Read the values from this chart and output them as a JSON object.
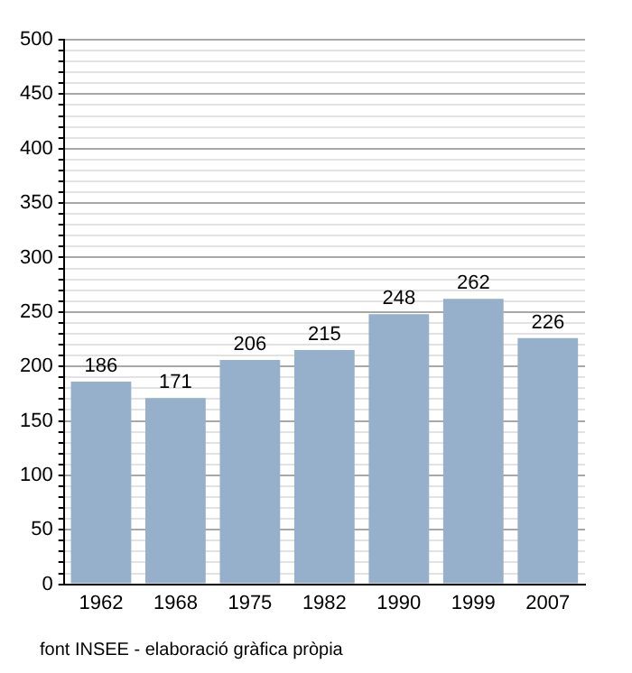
{
  "chart_data": {
    "type": "bar",
    "categories": [
      "1962",
      "1968",
      "1975",
      "1982",
      "1990",
      "1999",
      "2007"
    ],
    "values": [
      186,
      171,
      206,
      215,
      248,
      262,
      226
    ],
    "color": "#96b0cb",
    "data_labels": true,
    "grid": "y",
    "ylim": [
      0,
      500
    ],
    "yticks": [
      0,
      {
        "value": 10,
        "label": null
      },
      {
        "value": 20,
        "label": null
      },
      {
        "value": 30,
        "label": null
      },
      {
        "value": 40,
        "label": null
      },
      50,
      {
        "value": 60,
        "label": null
      },
      {
        "value": 70,
        "label": null
      },
      {
        "value": 80,
        "label": null
      },
      {
        "value": 90,
        "label": null
      },
      100,
      {
        "value": 110,
        "label": null
      },
      {
        "value": 120,
        "label": null
      },
      {
        "value": 130,
        "label": null
      },
      {
        "value": 140,
        "label": null
      },
      150,
      {
        "value": 160,
        "label": null
      },
      {
        "value": 170,
        "label": null
      },
      {
        "value": 180,
        "label": null
      },
      {
        "value": 190,
        "label": null
      },
      200,
      {
        "value": 210,
        "label": null
      },
      {
        "value": 220,
        "label": null
      },
      {
        "value": 230,
        "label": null
      },
      {
        "value": 240,
        "label": null
      },
      250,
      {
        "value": 260,
        "label": null
      },
      {
        "value": 270,
        "label": null
      },
      {
        "value": 280,
        "label": null
      },
      {
        "value": 290,
        "label": null
      },
      300,
      {
        "value": 310,
        "label": null
      },
      {
        "value": 320,
        "label": null
      },
      {
        "value": 330,
        "label": null
      },
      {
        "value": 340,
        "label": null
      },
      350,
      {
        "value": 360,
        "label": null
      },
      {
        "value": 370,
        "label": null
      },
      {
        "value": 380,
        "label": null
      },
      {
        "value": 390,
        "label": null
      },
      400,
      {
        "value": 410,
        "label": null
      },
      {
        "value": 420,
        "label": null
      },
      {
        "value": 430,
        "label": null
      },
      {
        "value": 440,
        "label": null
      },
      450,
      {
        "value": 460,
        "label": null
      },
      {
        "value": 470,
        "label": null
      },
      {
        "value": 480,
        "label": null
      },
      {
        "value": 490,
        "label": null
      },
      500
    ],
    "annotations": [
      "font INSEE - elaboració gràfica pròpia"
    ]
  }
}
